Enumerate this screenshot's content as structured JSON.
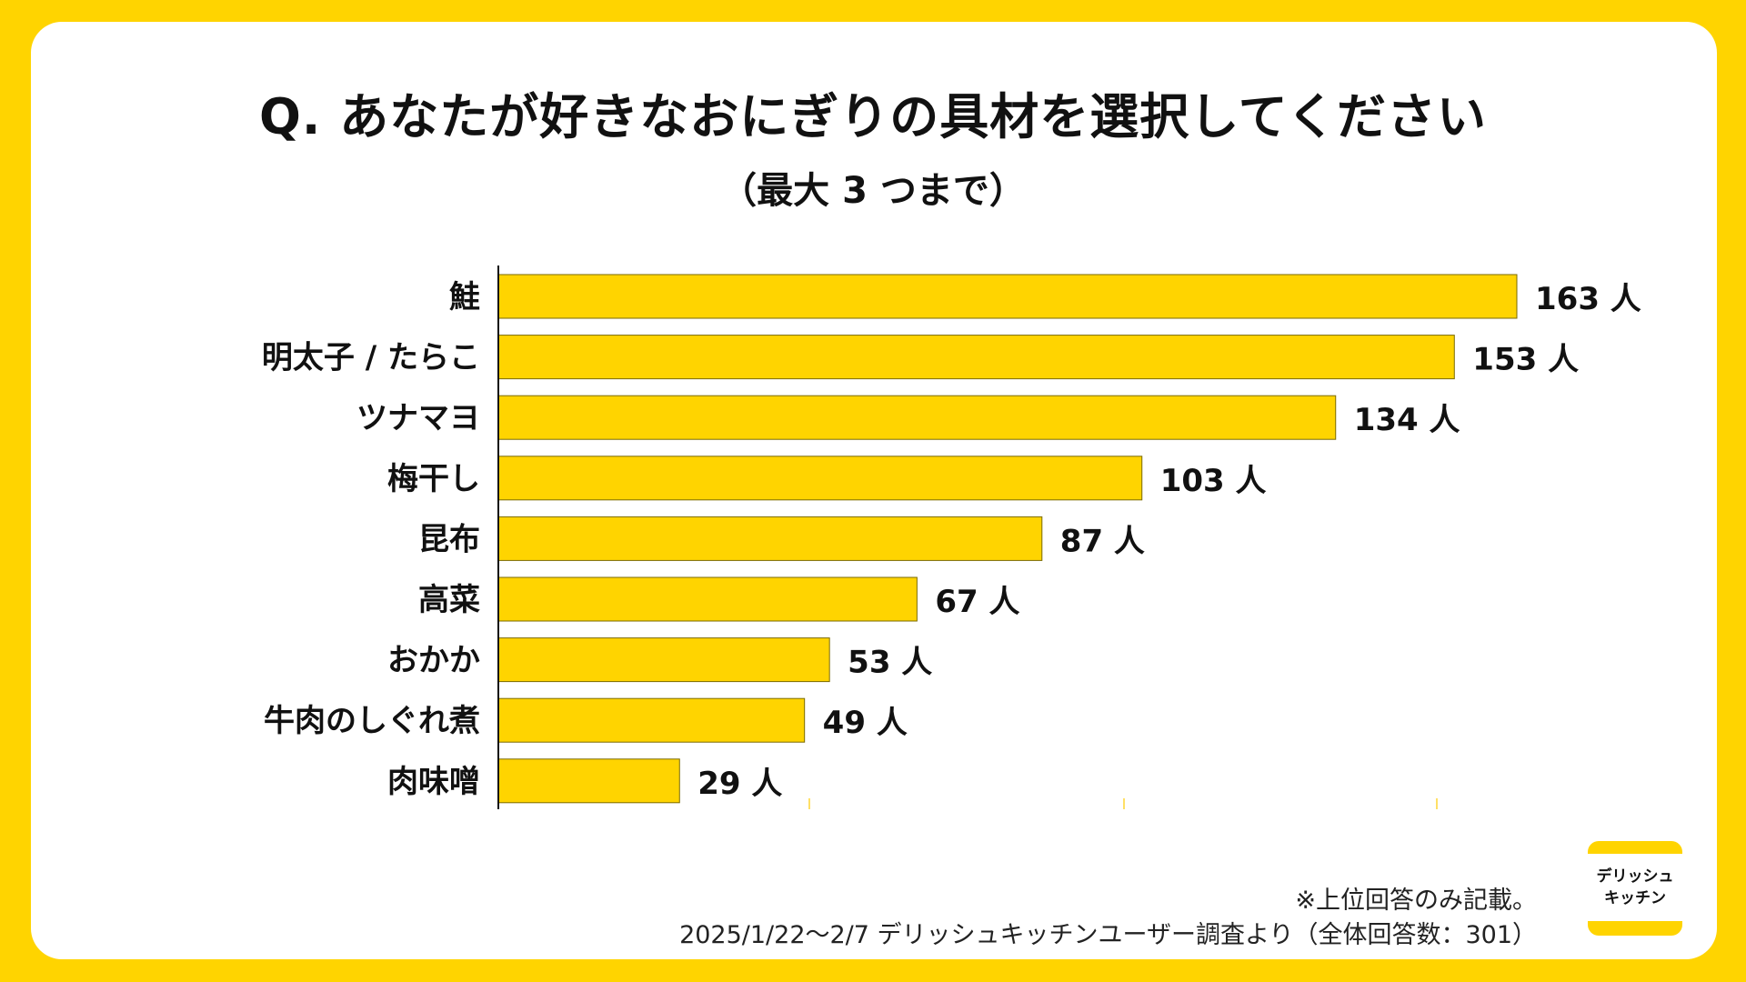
{
  "title": "Q. あなたが好きなおにぎりの具材を選択してください",
  "subtitle": "（最大 3 つまで）",
  "footnote": {
    "note": "※上位回答のみ記載。",
    "source": "2025/1/22〜2/7 デリッシュキッチンユーザー調査より（全体回答数：301）"
  },
  "logo": {
    "line1": "デリッシュ",
    "line2": "キッチン"
  },
  "colors": {
    "background": "#FFD400",
    "bar": "#FFD400",
    "bar_stroke": "#7A6A00",
    "text": "#111111"
  },
  "chart_data": {
    "type": "bar",
    "orientation": "horizontal",
    "title": "Q. あなたが好きなおにぎりの具材を選択してください",
    "subtitle": "（最大 3 つまで）",
    "categories": [
      "鮭",
      "明太子 / たらこ",
      "ツナマヨ",
      "梅干し",
      "昆布",
      "高菜",
      "おかか",
      "牛肉のしぐれ煮",
      "肉味噌"
    ],
    "values": [
      163,
      153,
      134,
      103,
      87,
      67,
      53,
      49,
      29
    ],
    "value_unit": "人",
    "xlim": [
      0,
      163
    ],
    "xlabel": "",
    "ylabel": "",
    "grid": false,
    "legend": "none"
  }
}
